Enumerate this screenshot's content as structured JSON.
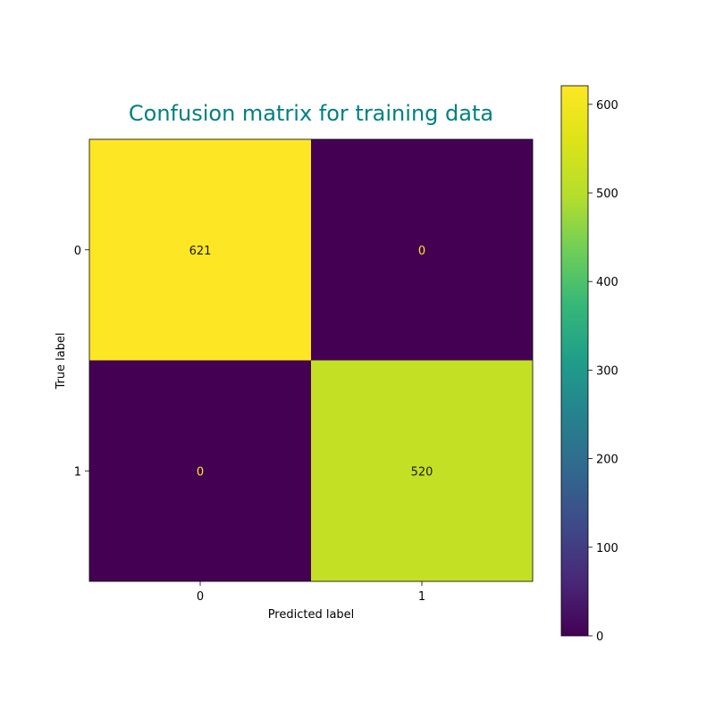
{
  "chart_data": {
    "type": "heatmap",
    "title": "Confusion matrix for training data",
    "xlabel": "Predicted label",
    "ylabel": "True label",
    "x_categories": [
      "0",
      "1"
    ],
    "y_categories": [
      "0",
      "1"
    ],
    "values": [
      [
        621,
        0
      ],
      [
        0,
        520
      ]
    ],
    "colormap": "viridis",
    "colorbar": {
      "range": [
        0,
        621
      ],
      "ticks": [
        0,
        100,
        200,
        300,
        400,
        500,
        600
      ]
    },
    "title_color": "#008080",
    "low_value_text_color": "#fde725",
    "high_value_text_color": "#1a1a1a",
    "grid": false
  }
}
